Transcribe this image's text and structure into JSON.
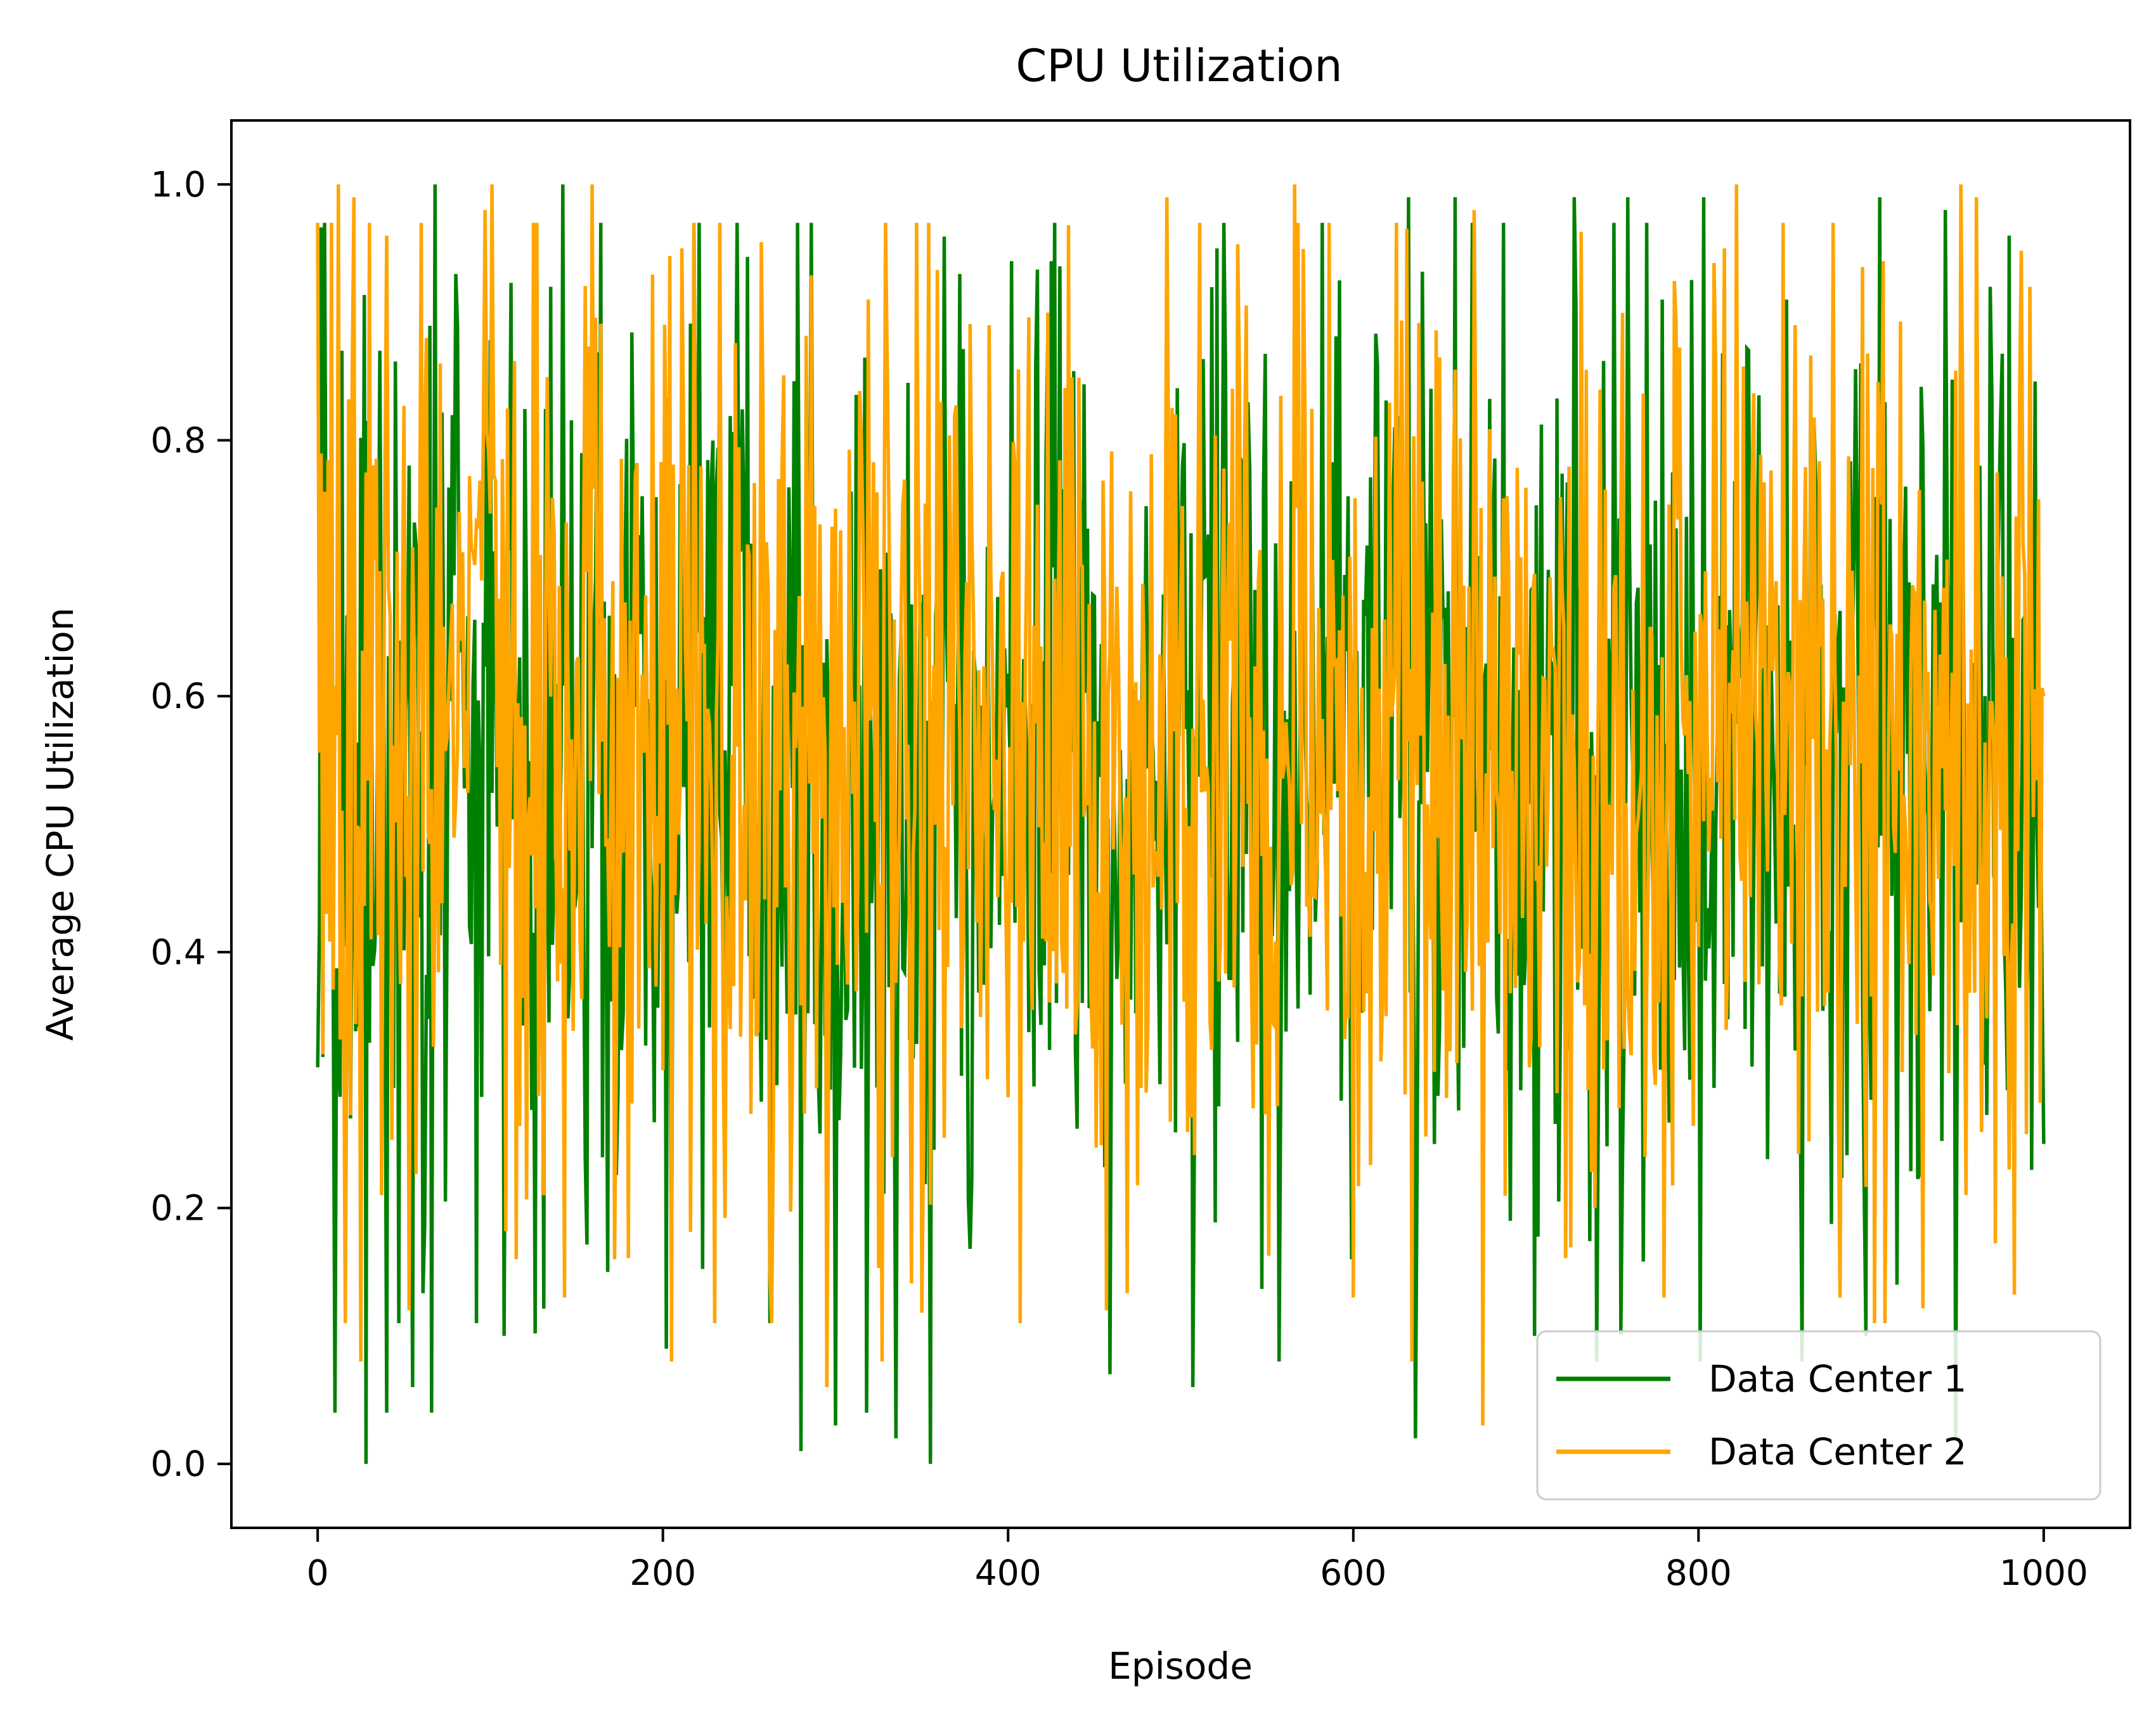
{
  "chart_data": {
    "type": "line",
    "title": "CPU Utilization",
    "xlabel": "Episode",
    "ylabel": "Average CPU Utilization",
    "xlim": [
      -50,
      1050
    ],
    "ylim": [
      -0.05,
      1.05
    ],
    "x_ticks": [
      0,
      200,
      400,
      600,
      800,
      1000
    ],
    "x_tick_labels": [
      "0",
      "200",
      "400",
      "600",
      "800",
      "1000"
    ],
    "y_ticks": [
      0.0,
      0.2,
      0.4,
      0.6,
      0.8,
      1.0
    ],
    "y_tick_labels": [
      "0.0",
      "0.2",
      "0.4",
      "0.6",
      "0.8",
      "1.0"
    ],
    "grid": false,
    "legend_position": "lower right",
    "x": {
      "start": 0,
      "end": 1000,
      "step": 1,
      "count": 1001
    },
    "series": [
      {
        "name": "Data Center 1",
        "color": "#008000",
        "value_range_observed": [
          0.0,
          1.0
        ],
        "approx_mean": 0.55,
        "sampled_values": [
          {
            "x": 0,
            "y": 0.31
          },
          {
            "x": 4,
            "y": 0.97
          },
          {
            "x": 10,
            "y": 0.04
          },
          {
            "x": 14,
            "y": 0.87
          },
          {
            "x": 19,
            "y": 0.27
          },
          {
            "x": 28,
            "y": 0.0
          },
          {
            "x": 36,
            "y": 0.87
          },
          {
            "x": 40,
            "y": 0.04
          },
          {
            "x": 47,
            "y": 0.11
          },
          {
            "x": 52,
            "y": 0.62
          },
          {
            "x": 55,
            "y": 0.06
          },
          {
            "x": 66,
            "y": 0.04
          },
          {
            "x": 68,
            "y": 1.0
          },
          {
            "x": 80,
            "y": 0.93
          },
          {
            "x": 92,
            "y": 0.11
          },
          {
            "x": 108,
            "y": 0.1
          },
          {
            "x": 135,
            "y": 0.92
          },
          {
            "x": 142,
            "y": 1.0
          },
          {
            "x": 153,
            "y": 0.79
          },
          {
            "x": 168,
            "y": 0.15
          },
          {
            "x": 205,
            "y": 0.13
          },
          {
            "x": 230,
            "y": 0.15
          },
          {
            "x": 243,
            "y": 0.97
          },
          {
            "x": 262,
            "y": 0.11
          },
          {
            "x": 280,
            "y": 0.01
          },
          {
            "x": 300,
            "y": 0.03
          },
          {
            "x": 318,
            "y": 0.04
          },
          {
            "x": 335,
            "y": 0.02
          },
          {
            "x": 355,
            "y": 0.0
          },
          {
            "x": 372,
            "y": 0.93
          },
          {
            "x": 402,
            "y": 0.94
          },
          {
            "x": 425,
            "y": 0.94
          },
          {
            "x": 459,
            "y": 0.07
          },
          {
            "x": 507,
            "y": 0.06
          },
          {
            "x": 521,
            "y": 0.95
          },
          {
            "x": 582,
            "y": 0.97
          },
          {
            "x": 599,
            "y": 0.16
          },
          {
            "x": 632,
            "y": 0.99
          },
          {
            "x": 636,
            "y": 0.02
          },
          {
            "x": 659,
            "y": 0.99
          },
          {
            "x": 705,
            "y": 0.1
          },
          {
            "x": 728,
            "y": 0.99
          },
          {
            "x": 741,
            "y": 0.08
          },
          {
            "x": 759,
            "y": 0.99
          },
          {
            "x": 779,
            "y": 0.91
          },
          {
            "x": 803,
            "y": 0.99
          },
          {
            "x": 851,
            "y": 0.91
          },
          {
            "x": 897,
            "y": 0.1
          },
          {
            "x": 905,
            "y": 0.99
          },
          {
            "x": 915,
            "y": 0.14
          },
          {
            "x": 943,
            "y": 0.98
          },
          {
            "x": 949,
            "y": 0.02
          },
          {
            "x": 969,
            "y": 0.92
          },
          {
            "x": 980,
            "y": 0.96
          },
          {
            "x": 1000,
            "y": 0.25
          }
        ]
      },
      {
        "name": "Data Center 2",
        "color": "#FFA500",
        "value_range_observed": [
          0.03,
          1.0
        ],
        "approx_mean": 0.56,
        "sampled_values": [
          {
            "x": 0,
            "y": 0.97
          },
          {
            "x": 3,
            "y": 0.32
          },
          {
            "x": 8,
            "y": 0.97
          },
          {
            "x": 12,
            "y": 1.0
          },
          {
            "x": 17,
            "y": 0.37
          },
          {
            "x": 21,
            "y": 0.99
          },
          {
            "x": 25,
            "y": 0.08
          },
          {
            "x": 30,
            "y": 0.97
          },
          {
            "x": 37,
            "y": 0.21
          },
          {
            "x": 40,
            "y": 0.96
          },
          {
            "x": 53,
            "y": 0.12
          },
          {
            "x": 63,
            "y": 0.88
          },
          {
            "x": 71,
            "y": 0.86
          },
          {
            "x": 97,
            "y": 0.98
          },
          {
            "x": 101,
            "y": 1.0
          },
          {
            "x": 115,
            "y": 0.16
          },
          {
            "x": 125,
            "y": 0.97
          },
          {
            "x": 131,
            "y": 0.21
          },
          {
            "x": 143,
            "y": 0.13
          },
          {
            "x": 159,
            "y": 1.0
          },
          {
            "x": 172,
            "y": 0.16
          },
          {
            "x": 205,
            "y": 0.08
          },
          {
            "x": 211,
            "y": 0.95
          },
          {
            "x": 262,
            "y": 0.15
          },
          {
            "x": 295,
            "y": 0.06
          },
          {
            "x": 319,
            "y": 0.91
          },
          {
            "x": 327,
            "y": 0.08
          },
          {
            "x": 361,
            "y": 0.83
          },
          {
            "x": 389,
            "y": 0.89
          },
          {
            "x": 457,
            "y": 0.12
          },
          {
            "x": 492,
            "y": 0.99
          },
          {
            "x": 566,
            "y": 1.0
          },
          {
            "x": 600,
            "y": 0.13
          },
          {
            "x": 634,
            "y": 0.08
          },
          {
            "x": 670,
            "y": 0.98
          },
          {
            "x": 675,
            "y": 0.03
          },
          {
            "x": 702,
            "y": 0.31
          },
          {
            "x": 740,
            "y": 0.2
          },
          {
            "x": 780,
            "y": 0.13
          },
          {
            "x": 815,
            "y": 0.95
          },
          {
            "x": 822,
            "y": 1.0
          },
          {
            "x": 856,
            "y": 0.89
          },
          {
            "x": 882,
            "y": 0.13
          },
          {
            "x": 907,
            "y": 0.94
          },
          {
            "x": 952,
            "y": 1.0
          },
          {
            "x": 961,
            "y": 0.99
          },
          {
            "x": 980,
            "y": 0.23
          },
          {
            "x": 992,
            "y": 0.92
          },
          {
            "x": 1000,
            "y": 0.6
          }
        ]
      }
    ]
  }
}
